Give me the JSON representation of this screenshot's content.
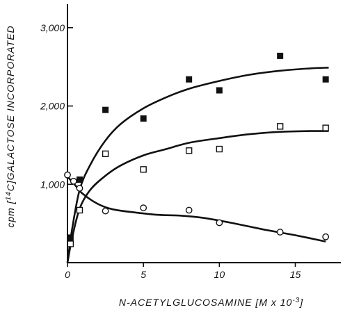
{
  "chart_data": {
    "type": "scatter",
    "title": "",
    "xlabel": "N-ACETYLGLUCOSAMINE [M x 10^-3]",
    "ylabel": "cpm [14C]GALACTOSE INCORPORATED",
    "xlabel_parts": {
      "main": "N-ACETYLGLUCOSAMINE [M x 10",
      "sup": "-3",
      "close": "]"
    },
    "ylabel_parts": {
      "pre": "cpm [",
      "sup": "14",
      "post": "C]GALACTOSE INCORPORATED"
    },
    "xlim": [
      0,
      18
    ],
    "ylim": [
      0,
      3300
    ],
    "x_ticks": [
      0,
      5,
      10,
      15
    ],
    "x_tick_labels": [
      "0",
      "5",
      "10",
      "15"
    ],
    "y_ticks": [
      1000,
      2000,
      3000
    ],
    "y_tick_labels": [
      "1,000",
      "2,000",
      "3,000"
    ],
    "grid": false,
    "legend": "none",
    "series": [
      {
        "marker": "filled-square",
        "color": "#111111",
        "points": [
          [
            0.2,
            320
          ],
          [
            0.8,
            1060
          ],
          [
            2.5,
            1950
          ],
          [
            5,
            1840
          ],
          [
            8,
            2340
          ],
          [
            10,
            2200
          ],
          [
            14,
            2640
          ],
          [
            17,
            2340
          ]
        ],
        "curve": [
          [
            0,
            0
          ],
          [
            0.3,
            420
          ],
          [
            0.8,
            930
          ],
          [
            1.5,
            1250
          ],
          [
            2.5,
            1560
          ],
          [
            3.5,
            1770
          ],
          [
            5,
            1970
          ],
          [
            6.5,
            2110
          ],
          [
            8,
            2220
          ],
          [
            10,
            2320
          ],
          [
            12,
            2400
          ],
          [
            14,
            2450
          ],
          [
            16,
            2480
          ],
          [
            17.2,
            2490
          ]
        ]
      },
      {
        "marker": "open-square",
        "color": "#111111",
        "points": [
          [
            0.2,
            240
          ],
          [
            0.8,
            670
          ],
          [
            2.5,
            1390
          ],
          [
            5,
            1190
          ],
          [
            8,
            1430
          ],
          [
            10,
            1450
          ],
          [
            14,
            1740
          ],
          [
            17,
            1720
          ]
        ],
        "curve": [
          [
            0,
            0
          ],
          [
            0.3,
            310
          ],
          [
            0.8,
            690
          ],
          [
            1.5,
            930
          ],
          [
            2.5,
            1110
          ],
          [
            3.5,
            1240
          ],
          [
            5,
            1370
          ],
          [
            6.5,
            1450
          ],
          [
            8,
            1530
          ],
          [
            10,
            1590
          ],
          [
            12,
            1640
          ],
          [
            14,
            1670
          ],
          [
            16,
            1680
          ],
          [
            17.2,
            1680
          ]
        ]
      },
      {
        "marker": "open-circle",
        "color": "#111111",
        "points": [
          [
            0,
            1120
          ],
          [
            0.4,
            1040
          ],
          [
            0.8,
            950
          ],
          [
            2.5,
            660
          ],
          [
            5,
            700
          ],
          [
            8,
            670
          ],
          [
            10,
            510
          ],
          [
            14,
            390
          ],
          [
            17,
            330
          ]
        ],
        "curve": [
          [
            0,
            1100
          ],
          [
            0.5,
            990
          ],
          [
            1,
            880
          ],
          [
            2,
            750
          ],
          [
            3,
            680
          ],
          [
            4.5,
            640
          ],
          [
            6,
            610
          ],
          [
            7.5,
            600
          ],
          [
            9,
            570
          ],
          [
            11,
            500
          ],
          [
            13,
            420
          ],
          [
            15,
            350
          ],
          [
            17,
            270
          ]
        ]
      }
    ]
  }
}
